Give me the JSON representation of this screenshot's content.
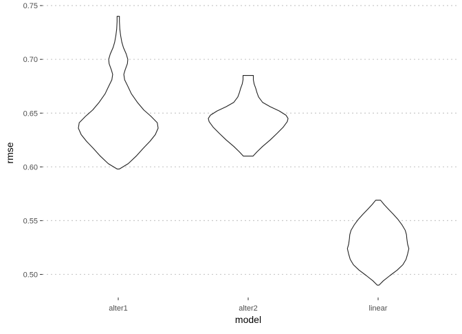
{
  "chart_data": {
    "type": "violin",
    "xlabel": "model",
    "ylabel": "rmse",
    "ylim": [
      0.483,
      0.752
    ],
    "yticks": [
      0.5,
      0.55,
      0.6,
      0.65,
      0.7,
      0.75
    ],
    "ytick_labels": [
      "0.50",
      "0.55",
      "0.60",
      "0.65",
      "0.70",
      "0.75"
    ],
    "grid": "horizontal dotted major lines",
    "legend": "none",
    "categories": [
      "alter1",
      "alter2",
      "linear"
    ],
    "series": [
      {
        "name": "alter1",
        "min": 0.598,
        "max": 0.74,
        "density": [
          [
            0.598,
            0.03
          ],
          [
            0.603,
            0.25
          ],
          [
            0.61,
            0.45
          ],
          [
            0.617,
            0.62
          ],
          [
            0.624,
            0.8
          ],
          [
            0.63,
            0.93
          ],
          [
            0.636,
            1.0
          ],
          [
            0.641,
            0.98
          ],
          [
            0.647,
            0.82
          ],
          [
            0.653,
            0.64
          ],
          [
            0.66,
            0.48
          ],
          [
            0.668,
            0.33
          ],
          [
            0.675,
            0.24
          ],
          [
            0.681,
            0.16
          ],
          [
            0.686,
            0.14
          ],
          [
            0.69,
            0.17
          ],
          [
            0.696,
            0.23
          ],
          [
            0.7,
            0.24
          ],
          [
            0.705,
            0.2
          ],
          [
            0.711,
            0.13
          ],
          [
            0.716,
            0.09
          ],
          [
            0.722,
            0.06
          ],
          [
            0.728,
            0.04
          ],
          [
            0.735,
            0.03
          ],
          [
            0.74,
            0.03
          ]
        ]
      },
      {
        "name": "alter2",
        "min": 0.61,
        "max": 0.685,
        "density": [
          [
            0.61,
            0.12
          ],
          [
            0.614,
            0.22
          ],
          [
            0.619,
            0.36
          ],
          [
            0.625,
            0.55
          ],
          [
            0.631,
            0.72
          ],
          [
            0.637,
            0.88
          ],
          [
            0.642,
            0.98
          ],
          [
            0.645,
            1.0
          ],
          [
            0.648,
            0.95
          ],
          [
            0.652,
            0.78
          ],
          [
            0.656,
            0.55
          ],
          [
            0.66,
            0.36
          ],
          [
            0.665,
            0.26
          ],
          [
            0.669,
            0.22
          ],
          [
            0.673,
            0.19
          ],
          [
            0.677,
            0.15
          ],
          [
            0.681,
            0.13
          ],
          [
            0.685,
            0.13
          ]
        ]
      },
      {
        "name": "linear",
        "min": 0.49,
        "max": 0.569,
        "density": [
          [
            0.49,
            0.02
          ],
          [
            0.494,
            0.13
          ],
          [
            0.499,
            0.3
          ],
          [
            0.504,
            0.48
          ],
          [
            0.509,
            0.62
          ],
          [
            0.514,
            0.7
          ],
          [
            0.519,
            0.74
          ],
          [
            0.524,
            0.77
          ],
          [
            0.528,
            0.74
          ],
          [
            0.533,
            0.72
          ],
          [
            0.537,
            0.71
          ],
          [
            0.541,
            0.68
          ],
          [
            0.546,
            0.6
          ],
          [
            0.551,
            0.5
          ],
          [
            0.556,
            0.38
          ],
          [
            0.561,
            0.25
          ],
          [
            0.565,
            0.15
          ],
          [
            0.569,
            0.06
          ]
        ]
      }
    ]
  }
}
